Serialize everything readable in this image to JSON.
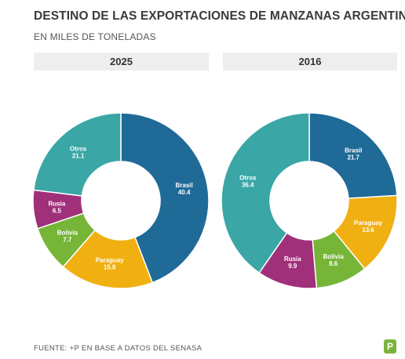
{
  "title": "DESTINO DE LAS EXPORTACIONES DE MANZANAS ARGENTINAS",
  "subtitle": "EN MILES DE TONELADAS",
  "source": "FUENTE: +P EN BASE A DATOS DEL SENASA",
  "logo_text": "P",
  "colors": {
    "Brasil": "#1f6a97",
    "Paraguay": "#f0b012",
    "Bolivia": "#76b538",
    "Rusia": "#a0307a",
    "Otros": "#3aa6a6"
  },
  "chart_data": [
    {
      "type": "pie",
      "title": "2025",
      "categories": [
        "Brasil",
        "Paraguay",
        "Bolivia",
        "Rusia",
        "Otros"
      ],
      "values": [
        40.4,
        15.8,
        7.7,
        6.5,
        21.1
      ],
      "value_labels": [
        "40.4",
        "15.8",
        "7.7",
        "6.5",
        "21.1"
      ]
    },
    {
      "type": "pie",
      "title": "2016",
      "categories": [
        "Brasil",
        "Paraguay",
        "Bolivia",
        "Rusia",
        "Otros"
      ],
      "values": [
        21.7,
        13.6,
        8.6,
        9.9,
        36.4
      ],
      "value_labels": [
        "21.7",
        "13.6",
        "8.6",
        "9.9",
        "36.4"
      ]
    }
  ]
}
